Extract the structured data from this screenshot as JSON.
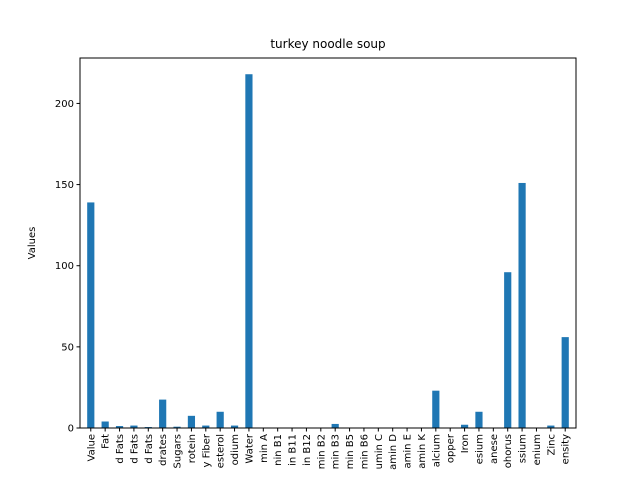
{
  "chart_data": {
    "type": "bar",
    "title": "turkey noodle soup",
    "xlabel": "",
    "ylabel": "Values",
    "ylim": [
      0,
      228
    ],
    "yticks": [
      0,
      50,
      100,
      150,
      200
    ],
    "grid": false,
    "color": "#1f77b4",
    "categories": [
      "Value",
      "Fat",
      "d Fats",
      "d Fats",
      "d Fats",
      "drates",
      "Sugars",
      "rotein",
      "y Fiber",
      "esterol",
      "odium",
      "Water",
      "min A",
      "nin B1",
      "in B11",
      "in B12",
      "min B2",
      "min B3",
      "min B5",
      "min B6",
      "umin C",
      "amin D",
      "amin E",
      "amin K",
      "alcium",
      "opper",
      "Iron",
      "esium",
      "anese",
      "ohorus",
      "ssium",
      "enium",
      "Zinc",
      "ensity"
    ],
    "values": [
      139,
      4,
      1.2,
      1.5,
      0.6,
      17.5,
      0.8,
      7.5,
      1.5,
      10,
      1.5,
      218,
      0.2,
      0.1,
      0,
      0.1,
      0.1,
      2.5,
      0.3,
      0.2,
      0,
      0,
      0.2,
      0,
      23,
      0.1,
      2,
      10,
      0.2,
      96,
      151,
      0.1,
      1.5,
      56
    ]
  }
}
